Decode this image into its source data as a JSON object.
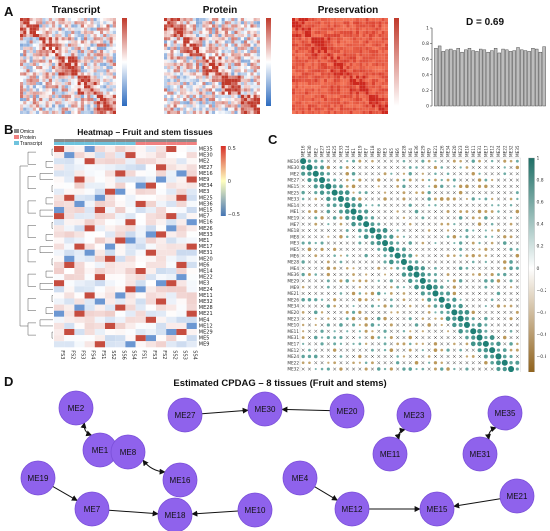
{
  "panel_letters": [
    "A",
    "B",
    "C",
    "D"
  ],
  "panelA": {
    "titles": [
      "Transcript",
      "Protein",
      "Preservation"
    ],
    "d_stat": "D = 0.69",
    "bar_values": [
      0.74,
      0.77,
      0.7,
      0.72,
      0.73,
      0.71,
      0.74,
      0.69,
      0.72,
      0.74,
      0.71,
      0.7,
      0.73,
      0.72,
      0.69,
      0.71,
      0.74,
      0.68,
      0.73,
      0.72,
      0.7,
      0.71,
      0.75,
      0.72,
      0.71,
      0.7,
      0.74,
      0.73,
      0.69,
      0.76
    ],
    "bar_ylim": [
      0,
      1
    ],
    "bar_yticks": [
      "1",
      "0.8",
      "0.6",
      "0.4",
      "0.2",
      "0"
    ]
  },
  "panelB": {
    "title": "Heatmap – Fruit and stem tissues",
    "legend_title": "Omics",
    "legend_items": [
      {
        "label": "Omics",
        "color": "#8a8a8a"
      },
      {
        "label": "Protein",
        "color": "#f08080"
      },
      {
        "label": "Transcript",
        "color": "#6fc3dd"
      }
    ],
    "row_labels": [
      "ME35",
      "ME30",
      "ME2",
      "ME27",
      "ME16",
      "ME9",
      "ME34",
      "ME3",
      "ME25",
      "ME36",
      "ME15",
      "ME7",
      "ME16",
      "ME26",
      "ME33",
      "ME1",
      "ME17",
      "ME31",
      "ME20",
      "ME6",
      "ME14",
      "ME22",
      "ME3",
      "ME24",
      "ME11",
      "ME32",
      "ME28",
      "ME21",
      "ME4",
      "ME12",
      "ME29",
      "ME5",
      "ME9"
    ],
    "col_labels": [
      "FS3",
      "FS2",
      "FS3",
      "FS4",
      "FS1",
      "SS2",
      "SS6",
      "SS4",
      "FS1",
      "FS3",
      "FS2",
      "SS2",
      "SS3",
      "SS4"
    ],
    "scale_ticks": [
      "0.5",
      "0",
      "−0.5"
    ]
  },
  "panelC": {
    "labels": [
      "ME16",
      "ME30",
      "ME2",
      "ME27",
      "ME15",
      "ME25",
      "ME33",
      "ME14",
      "ME1",
      "ME19",
      "ME7",
      "ME18",
      "ME8",
      "ME3",
      "ME5",
      "ME6",
      "ME28",
      "ME4",
      "ME36",
      "ME29",
      "ME9",
      "ME21",
      "ME26",
      "ME34",
      "ME20",
      "ME23",
      "ME10",
      "ME11",
      "ME31",
      "ME17",
      "ME12",
      "ME24",
      "ME22",
      "ME32",
      "ME35"
    ],
    "scale_ticks": [
      "1",
      "0.8",
      "0.6",
      "0.4",
      "0.2",
      "0",
      "−0.2",
      "−0.4",
      "−0.6",
      "−0.8",
      "−1"
    ]
  },
  "panelD": {
    "title": "Estimated CPDAG – 8 tissues (Fruit and stems)",
    "nodes": [
      {
        "id": "ME2",
        "label": "ME2"
      },
      {
        "id": "ME1",
        "label": "ME1"
      },
      {
        "id": "ME27",
        "label": "ME27"
      },
      {
        "id": "ME30",
        "label": "ME30"
      },
      {
        "id": "ME20",
        "label": "ME20"
      },
      {
        "id": "ME23",
        "label": "ME23"
      },
      {
        "id": "ME11",
        "label": "ME11"
      },
      {
        "id": "ME35",
        "label": "ME35"
      },
      {
        "id": "ME31",
        "label": "ME31"
      },
      {
        "id": "ME8",
        "label": "ME8"
      },
      {
        "id": "ME16",
        "label": "ME16"
      },
      {
        "id": "ME19",
        "label": "ME19"
      },
      {
        "id": "ME7",
        "label": "ME7"
      },
      {
        "id": "ME18",
        "label": "ME18"
      },
      {
        "id": "ME10",
        "label": "ME10"
      },
      {
        "id": "ME4",
        "label": "ME4"
      },
      {
        "id": "ME12",
        "label": "ME12"
      },
      {
        "id": "ME15",
        "label": "ME15"
      },
      {
        "id": "ME21",
        "label": "ME21"
      }
    ],
    "edges": [
      {
        "from": "ME2",
        "to": "ME1",
        "type": "undirected"
      },
      {
        "from": "ME27",
        "to": "ME30",
        "type": "directed"
      },
      {
        "from": "ME20",
        "to": "ME30",
        "type": "directed"
      },
      {
        "from": "ME23",
        "to": "ME11",
        "type": "undirected"
      },
      {
        "from": "ME35",
        "to": "ME31",
        "type": "undirected"
      },
      {
        "from": "ME8",
        "to": "ME16",
        "type": "undirected"
      },
      {
        "from": "ME19",
        "to": "ME7",
        "type": "directed"
      },
      {
        "from": "ME7",
        "to": "ME18",
        "type": "directed"
      },
      {
        "from": "ME10",
        "to": "ME18",
        "type": "directed"
      },
      {
        "from": "ME4",
        "to": "ME12",
        "type": "directed"
      },
      {
        "from": "ME12",
        "to": "ME15",
        "type": "directed"
      },
      {
        "from": "ME21",
        "to": "ME15",
        "type": "directed"
      }
    ]
  },
  "colors": {
    "node": "#8f62ec",
    "heat_red": "#d73027",
    "heat_blue": "#4575b4",
    "teal": "#1f7f75",
    "brown": "#a0701a"
  }
}
